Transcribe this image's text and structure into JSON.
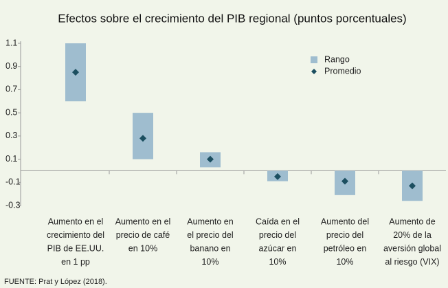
{
  "chart_data": {
    "type": "range",
    "title": "Efectos sobre el crecimiento del PIB regional (puntos porcentuales)",
    "categories": [
      [
        "Aumento en el",
        "crecimiento del",
        "PIB de EE.UU.",
        "en 1 pp"
      ],
      [
        "Aumento en el",
        "precio de café",
        "en 10%"
      ],
      [
        "Aumento en",
        "el precio del",
        "banano en",
        "10%"
      ],
      [
        "Caída en el",
        "precio del",
        "azúcar en",
        "10%"
      ],
      [
        "Aumento del",
        "precio del",
        "petróleo en",
        "10%"
      ],
      [
        "Aumento de",
        "20% de la",
        "aversión global",
        "al riesgo (VIX)"
      ]
    ],
    "series": [
      {
        "name": "Rango",
        "color": "#9fbdcf",
        "low": [
          0.6,
          0.1,
          0.03,
          -0.09,
          -0.21,
          -0.26
        ],
        "high": [
          1.1,
          0.5,
          0.16,
          0,
          0,
          0
        ]
      },
      {
        "name": "Promedio",
        "color": "#1c4f60",
        "values": [
          0.85,
          0.28,
          0.1,
          -0.05,
          -0.09,
          -0.13
        ]
      }
    ],
    "ylim": [
      -0.3,
      1.1
    ],
    "yticks": [
      1.1,
      0.9,
      0.7,
      0.5,
      0.3,
      0.1,
      -0.1,
      -0.3
    ],
    "source": "FUENTE: Prat y López (2018)."
  }
}
